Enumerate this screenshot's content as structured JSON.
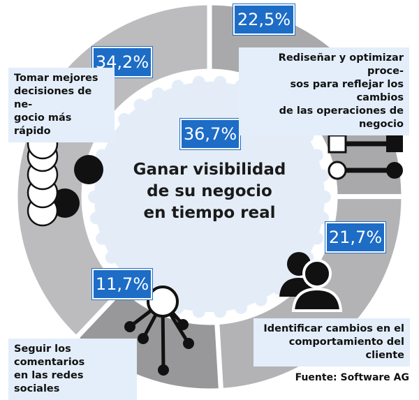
{
  "chart_data": {
    "type": "pie",
    "center": {
      "value_label": "36,7%",
      "lines": [
        "Ganar visibilidad",
        "de su negocio",
        "en tiempo real"
      ]
    },
    "slices": [
      {
        "label": "Rediseñar y optimizar procesos para reflejar los cambios de las operaciones de negocio",
        "value": 22.5,
        "value_label": "22,5%"
      },
      {
        "label": "Identificar cambios en el comportamiento del cliente",
        "value": 21.7,
        "value_label": "21,7%"
      },
      {
        "label": "Seguir los comentarios en las redes sociales",
        "value": 11.7,
        "value_label": "11,7%"
      },
      {
        "label": "Tomar mejores decisiones de negocio más rápido",
        "value": 34.2,
        "value_label": "34,2%"
      }
    ],
    "colors": {
      "ring": [
        "#a9a9ab",
        "#b3b3b5",
        "#98989a",
        "#bcbcbe"
      ],
      "center": "#e4edf7",
      "badge": "#1d6cc6",
      "label_bg": "#e3eefa"
    }
  },
  "text": {
    "rediseñar_lines": [
      "Rediseñar y optimizar proce-",
      "sos para reflejar los cambios",
      "de las operaciones de negocio"
    ],
    "identificar_lines": [
      "Identificar cambios en el",
      "comportamiento del cliente"
    ],
    "seguir_lines": [
      "Seguir los comentarios",
      "en las redes sociales"
    ],
    "tomar_lines": [
      "Tomar mejores",
      "decisiones de ne-",
      "gocio más rápido"
    ]
  },
  "source": "Fuente: Software AG",
  "icons": [
    "process-connectors-icon",
    "people-icon",
    "social-network-icon",
    "stacked-circles-icon"
  ]
}
